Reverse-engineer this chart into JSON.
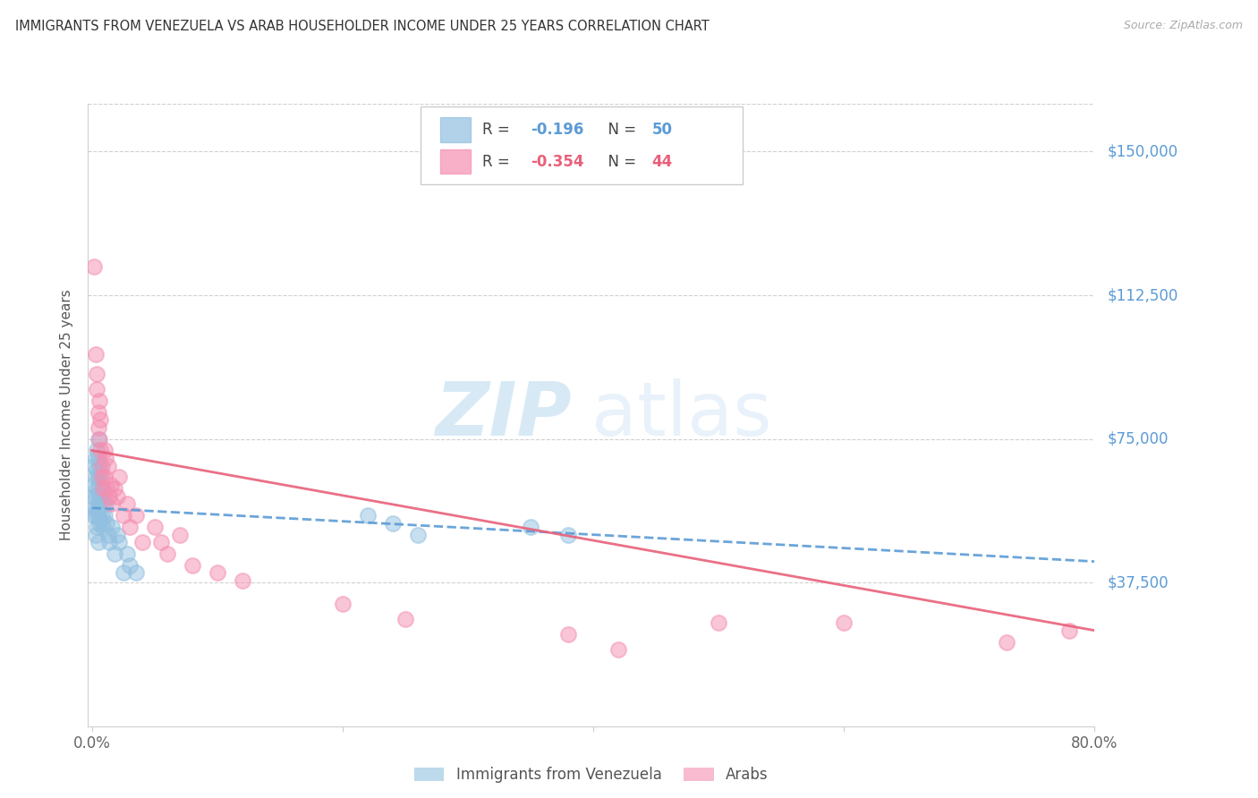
{
  "title": "IMMIGRANTS FROM VENEZUELA VS ARAB HOUSEHOLDER INCOME UNDER 25 YEARS CORRELATION CHART",
  "source": "Source: ZipAtlas.com",
  "ylabel": "Householder Income Under 25 years",
  "yticks": [
    0,
    37500,
    75000,
    112500,
    150000
  ],
  "ytick_labels": [
    "",
    "$37,500",
    "$75,000",
    "$112,500",
    "$150,000"
  ],
  "xlim": [
    -0.003,
    0.8
  ],
  "ylim": [
    0,
    162500
  ],
  "legend_label1": "Immigrants from Venezuela",
  "legend_label2": "Arabs",
  "blue_color": "#92c0e0",
  "pink_color": "#f48fb1",
  "trend_blue": "#5b9bd5",
  "trend_pink": "#e8607a",
  "r1_val": "-0.196",
  "n1_val": "50",
  "r2_val": "-0.354",
  "n2_val": "44",
  "blue_x": [
    0.001,
    0.001,
    0.002,
    0.002,
    0.002,
    0.003,
    0.003,
    0.003,
    0.003,
    0.003,
    0.004,
    0.004,
    0.004,
    0.004,
    0.004,
    0.005,
    0.005,
    0.005,
    0.005,
    0.005,
    0.005,
    0.006,
    0.006,
    0.006,
    0.006,
    0.007,
    0.007,
    0.007,
    0.008,
    0.008,
    0.009,
    0.009,
    0.01,
    0.011,
    0.012,
    0.013,
    0.014,
    0.016,
    0.018,
    0.02,
    0.022,
    0.025,
    0.028,
    0.03,
    0.035,
    0.22,
    0.24,
    0.26,
    0.35,
    0.38
  ],
  "blue_y": [
    60000,
    55000,
    68000,
    63000,
    57000,
    70000,
    65000,
    60000,
    55000,
    50000,
    72000,
    67000,
    62000,
    57000,
    52000,
    75000,
    70000,
    65000,
    60000,
    55000,
    48000,
    68000,
    63000,
    58000,
    53000,
    66000,
    60000,
    54000,
    62000,
    55000,
    58000,
    52000,
    55000,
    58000,
    53000,
    50000,
    48000,
    52000,
    45000,
    50000,
    48000,
    40000,
    45000,
    42000,
    40000,
    55000,
    53000,
    50000,
    52000,
    50000
  ],
  "pink_x": [
    0.002,
    0.003,
    0.004,
    0.004,
    0.005,
    0.005,
    0.006,
    0.006,
    0.007,
    0.007,
    0.008,
    0.008,
    0.009,
    0.01,
    0.01,
    0.011,
    0.012,
    0.013,
    0.014,
    0.015,
    0.016,
    0.018,
    0.02,
    0.022,
    0.025,
    0.028,
    0.03,
    0.035,
    0.04,
    0.05,
    0.055,
    0.06,
    0.07,
    0.08,
    0.1,
    0.12,
    0.2,
    0.25,
    0.38,
    0.42,
    0.5,
    0.6,
    0.73,
    0.78
  ],
  "pink_y": [
    120000,
    97000,
    92000,
    88000,
    82000,
    78000,
    85000,
    75000,
    80000,
    72000,
    68000,
    65000,
    62000,
    72000,
    65000,
    70000,
    62000,
    68000,
    60000,
    63000,
    58000,
    62000,
    60000,
    65000,
    55000,
    58000,
    52000,
    55000,
    48000,
    52000,
    48000,
    45000,
    50000,
    42000,
    40000,
    38000,
    32000,
    28000,
    24000,
    20000,
    27000,
    27000,
    22000,
    25000
  ]
}
